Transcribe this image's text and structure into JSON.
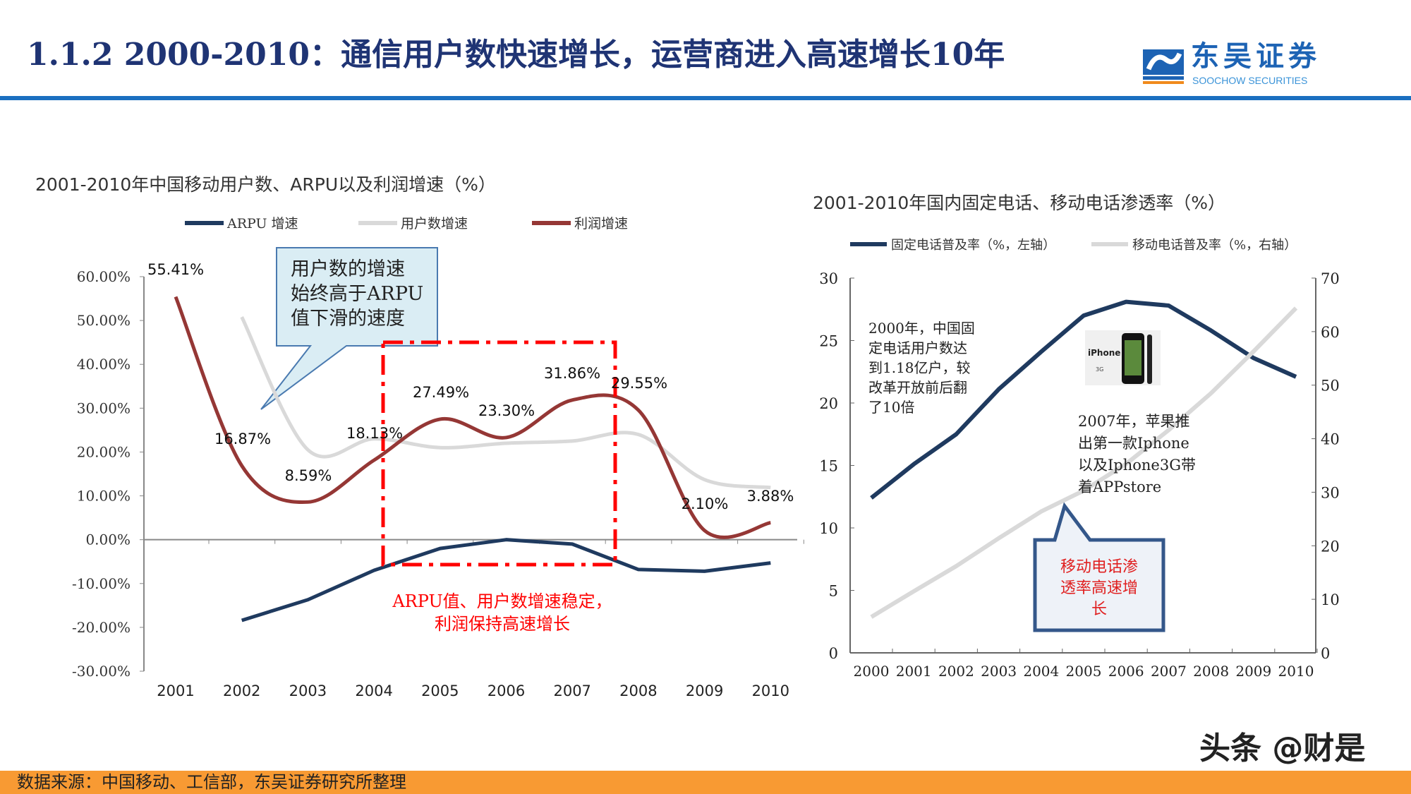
{
  "header": {
    "title": "1.1.2 2000-2010：通信用户数快速增长，运营商进入高速增长10年",
    "logo_cn": "东吴证券",
    "logo_en": "SOOCHOW SECURITIES",
    "logo_mark": "SCS",
    "brand_color": "#1a6fc0"
  },
  "footer": {
    "source": "数据来源：中国移动、工信部，东吴证券研究所整理",
    "watermark": "头条 @财是",
    "bar_color": "#f89a33"
  },
  "chart_data": [
    {
      "type": "line",
      "title": "2001-2010年中国移动用户数、ARPU以及利润增速（%）",
      "categories": [
        "2001",
        "2002",
        "2003",
        "2004",
        "2005",
        "2006",
        "2007",
        "2008",
        "2009",
        "2010"
      ],
      "ylim": [
        -30,
        60
      ],
      "yticks": [
        "60.00%",
        "50.00%",
        "40.00%",
        "30.00%",
        "20.00%",
        "10.00%",
        "0.00%",
        "-10.00%",
        "-20.00%",
        "-30.00%"
      ],
      "legend_position": "top",
      "series": [
        {
          "name": "ARPU 增速",
          "color": "#1f3a5f",
          "smooth": false,
          "values": [
            null,
            -18.4,
            -13.7,
            -7.0,
            -2.0,
            0.0,
            -1.0,
            -6.8,
            -7.2,
            -5.3
          ]
        },
        {
          "name": "用户数增速",
          "color": "#d9d9d9",
          "smooth": true,
          "values": [
            null,
            50.8,
            20.5,
            23.0,
            21.0,
            22.0,
            22.5,
            24.0,
            13.7,
            11.9
          ]
        },
        {
          "name": "利润增速",
          "color": "#953735",
          "smooth": true,
          "values": [
            55.41,
            16.87,
            8.59,
            18.13,
            27.49,
            23.3,
            31.86,
            29.55,
            2.1,
            3.88
          ],
          "labels": [
            "55.41%",
            "16.87%",
            "8.59%",
            "18.13%",
            "27.49%",
            "23.30%",
            "31.86%",
            "29.55%",
            "2.10%",
            "3.88%"
          ]
        }
      ],
      "annotations": {
        "callout": [
          "用户数的增速",
          "始终高于ARPU",
          "值下滑的速度"
        ],
        "highlight_text": [
          "ARPU值、用户数增速稳定，",
          "利润保持高速增长"
        ],
        "highlight_color": "#ff0000"
      }
    },
    {
      "type": "line",
      "title": "2001-2010年国内固定电话、移动电话渗透率（%）",
      "categories": [
        "2000",
        "2001",
        "2002",
        "2003",
        "2004",
        "2005",
        "2006",
        "2007",
        "2008",
        "2009",
        "2010"
      ],
      "ylim_left": [
        0,
        30
      ],
      "ylim_right": [
        0,
        70
      ],
      "yticks_left": [
        "30",
        "25",
        "20",
        "15",
        "10",
        "5",
        "0"
      ],
      "yticks_right": [
        "70",
        "60",
        "50",
        "40",
        "30",
        "20",
        "10",
        "0"
      ],
      "legend_position": "top",
      "series": [
        {
          "name": "固定电话普及率（%，左轴）",
          "axis": "left",
          "color": "#1f3a5f",
          "values": [
            12.4,
            15.1,
            17.5,
            21.1,
            24.1,
            27.0,
            28.1,
            27.8,
            25.8,
            23.6,
            22.1
          ]
        },
        {
          "name": "移动电话普及率（%，右轴）",
          "axis": "right",
          "color": "#d9d9d9",
          "values": [
            6.7,
            11.5,
            16.2,
            21.4,
            26.4,
            30.3,
            35.3,
            41.6,
            48.5,
            56.3,
            64.4
          ]
        }
      ],
      "annotations": {
        "note_2000": [
          "2000年，中国固",
          "定电话用户数达",
          "到1.18亿户，较",
          "改革开放前后翻",
          "了10倍"
        ],
        "note_2007": [
          "2007年，苹果推",
          "出第一款Iphone",
          "以及Iphone3G带",
          "着APPstore"
        ],
        "callout": [
          "移动电话渗",
          "透率高速增",
          "长"
        ],
        "image_label": "iPhone",
        "image_sublabel": "3G"
      }
    }
  ]
}
